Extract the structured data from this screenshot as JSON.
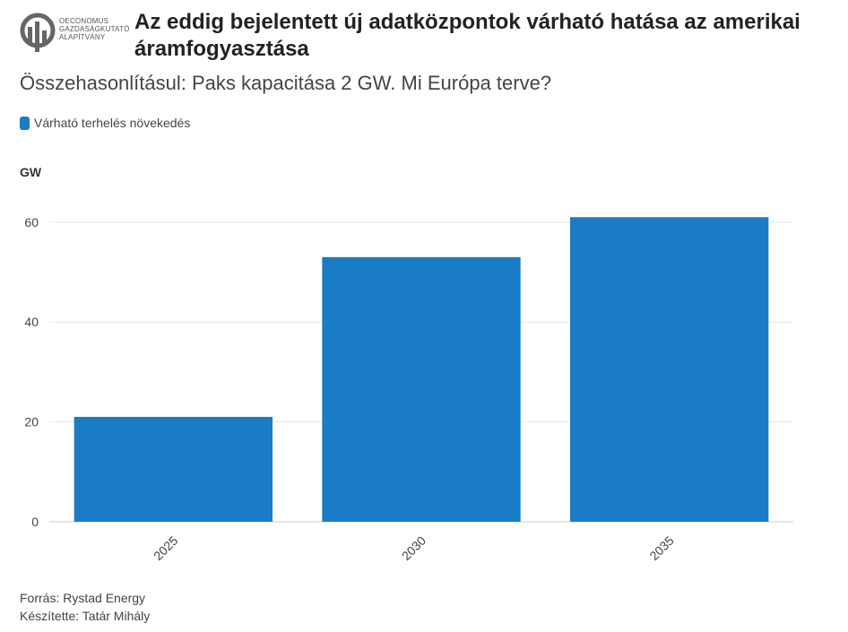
{
  "brand": {
    "line1": "OECONOMUS",
    "line2": "GAZDASÁGKUTATÓ",
    "line3": "ALAPÍTVÁNY"
  },
  "header": {
    "title": "Az eddig bejelentett új adatközpontok várható hatása az amerikai áramfogyasztása",
    "subtitle": "Összehasonlításul: Paks kapacitása 2 GW. Mi Európa terve?"
  },
  "colors": {
    "bar": "#1a7bc6",
    "grid": "#e6e6e6",
    "axis": "#cccccc",
    "text": "#444444"
  },
  "chart_data": {
    "type": "bar",
    "unit_label": "GW",
    "categories": [
      "2025",
      "2030",
      "2035"
    ],
    "series": [
      {
        "name": "Várható terhelés növekedés",
        "values": [
          21,
          53,
          61
        ]
      }
    ],
    "yticks": [
      0,
      20,
      40,
      60
    ],
    "ylim": [
      0,
      65
    ],
    "grid": true,
    "legend": "top-left"
  },
  "footer": {
    "source": "Forrás: Rystad Energy",
    "author": "Készítette: Tatár Mihály"
  }
}
